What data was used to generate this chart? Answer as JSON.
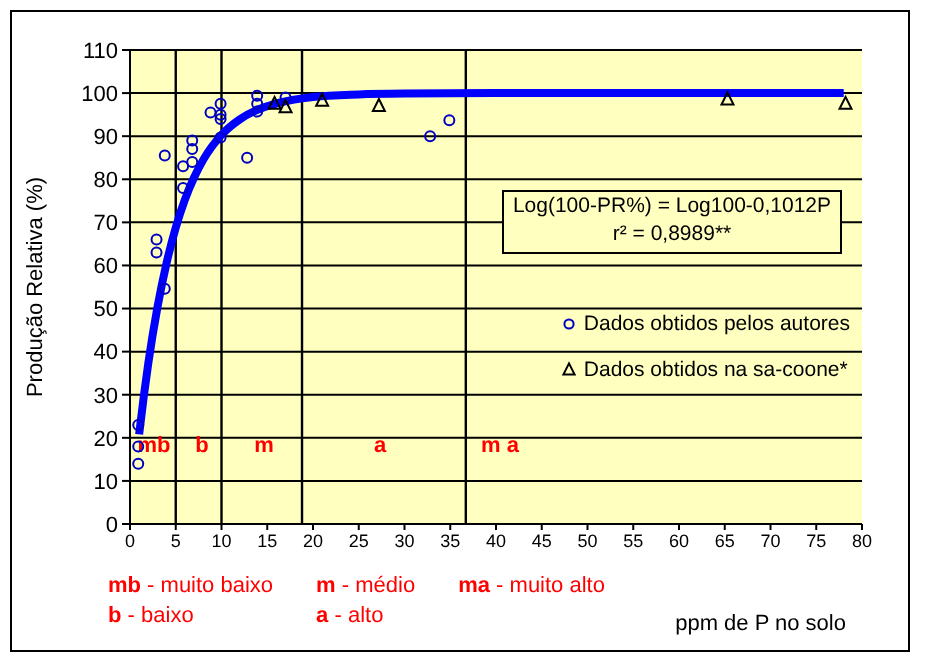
{
  "chart_data": {
    "type": "scatter",
    "ylabel": "Produção Relativa (%)",
    "xlabel": "ppm de P no solo",
    "xlim": [
      0,
      80
    ],
    "xticks": [
      0,
      5,
      10,
      15,
      20,
      25,
      30,
      35,
      40,
      45,
      50,
      55,
      60,
      65,
      70,
      75,
      80
    ],
    "ylim": [
      0,
      110
    ],
    "yticks": [
      0,
      10,
      20,
      30,
      40,
      50,
      60,
      70,
      80,
      90,
      100,
      110
    ],
    "grid": "y",
    "legend": "right",
    "series": [
      {
        "name": "Dados obtidos pelos autores",
        "marker": "circle",
        "color": "#0000c0",
        "x": [
          0.9,
          0.9,
          0.9,
          2.9,
          2.9,
          3.8,
          3.8,
          5.8,
          5.8,
          6.8,
          6.8,
          6.8,
          8.8,
          9.9,
          9.9,
          9.9,
          9.9,
          12.8,
          13.9,
          13.9,
          13.9,
          17,
          32.8,
          34.9
        ],
        "values": [
          14,
          18,
          23,
          66,
          63,
          85.5,
          54.6,
          83,
          78,
          89,
          87,
          84,
          95.5,
          97.5,
          95,
          94,
          89.7,
          85,
          99.4,
          97.5,
          95.7,
          99,
          90,
          93.7
        ]
      },
      {
        "name": "Dados obtidos na sa-coone*",
        "marker": "triangle",
        "color": "#000000",
        "x": [
          15.8,
          17,
          21,
          27.2,
          65.3,
          78.2
        ],
        "values": [
          97.5,
          96.7,
          98.2,
          97,
          98.5,
          97.5
        ]
      },
      {
        "type": "line",
        "marker": "none",
        "color": "#0000ff",
        "x": [
          1,
          1.5,
          2,
          3,
          4,
          5,
          6,
          7,
          8,
          10,
          12,
          14,
          16,
          20,
          25,
          30,
          40,
          50,
          60,
          78
        ],
        "values": [
          20.8,
          29.5,
          37.3,
          50.3,
          60.6,
          68.8,
          75.3,
          80.4,
          84.5,
          90.3,
          93.9,
          96.2,
          97.6,
          99.1,
          99.7,
          99.9,
          100,
          100,
          100,
          100
        ]
      }
    ],
    "ref_lines": [
      {
        "axis": "x",
        "value": 5,
        "color": "#000000"
      },
      {
        "axis": "x",
        "value": 10,
        "color": "#000000"
      },
      {
        "axis": "x",
        "value": 18.8,
        "color": "#000000"
      },
      {
        "axis": "x",
        "value": 36.7,
        "color": "#000000"
      }
    ],
    "annotations": [
      "Log(100-PR%) = Log100-0,1012P",
      "r² = 0,8989**",
      "mb - muito baixo",
      "b - baixo",
      "m - médio",
      "a - alto",
      "ma - muito alto",
      "mb",
      "b",
      "m",
      "a",
      "m a"
    ]
  }
}
